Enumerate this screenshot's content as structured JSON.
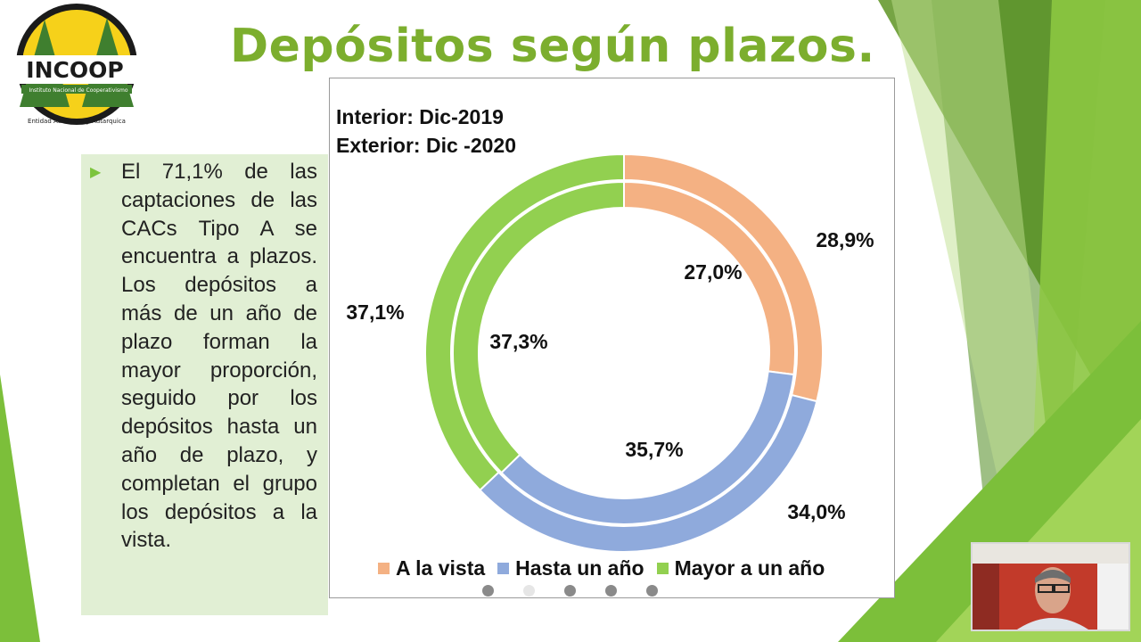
{
  "slide": {
    "title": "Depósitos según plazos.",
    "logo": {
      "text": "INCOOP",
      "subtitle": "Instituto Nacional de Cooperativismo",
      "tagline": "Entidad Autotoma y Autarquica"
    },
    "body_text": "El 71,1% de las captaciones de las CACs Tipo A se encuentra a plazos. Los depósitos a más de un año de plazo forman la mayor proporción, seguido por los depósitos hasta un año de plazo, y completan el grupo los depósitos a la vista.",
    "chart_note_line1": "Interior: Dic-2019",
    "chart_note_line2": "Exterior: Dic -2020"
  },
  "chart_data": {
    "type": "donut",
    "categories": [
      "A la vista",
      "Hasta un año",
      "Mayor a un año"
    ],
    "colors": [
      "#f4b183",
      "#8faadc",
      "#92d050"
    ],
    "series": [
      {
        "name": "Dic-2019",
        "ring": "inner",
        "values": [
          27.0,
          35.7,
          37.3
        ],
        "labels": [
          "27,0%",
          "35,7%",
          "37,3%"
        ]
      },
      {
        "name": "Dic-2020",
        "ring": "outer",
        "values": [
          28.9,
          34.0,
          37.1
        ],
        "labels": [
          "28,9%",
          "34,0%",
          "37,1%"
        ]
      }
    ],
    "legend": [
      "A la vista",
      "Hasta un año",
      "Mayor a un año"
    ],
    "legend_position": "bottom"
  },
  "colors": {
    "title": "#7cae2e",
    "text_box_bg": "#e1efd4",
    "bullet": "#7cc43c"
  },
  "icons": {
    "bullet": "right-triangle-icon",
    "nav": "dot-icon"
  },
  "webcam": {
    "description_hidden": ""
  }
}
